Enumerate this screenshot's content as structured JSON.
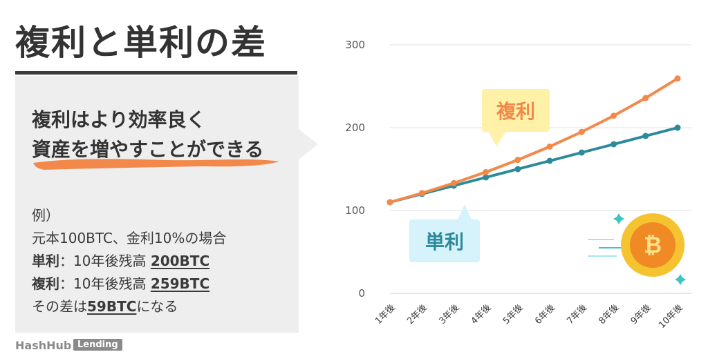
{
  "headline": "複利と単利の差",
  "lead": {
    "line1": "複利はより効率良く",
    "line2": "資産を増やすことができる"
  },
  "example": {
    "heading": "例）",
    "condition": "元本100BTC、金利10%の場合",
    "simple_prefix": "単利",
    "simple_text": "：10年後残高 ",
    "simple_value": "200BTC",
    "compound_prefix": "複利",
    "compound_text": "：10年後残高 ",
    "compound_value": "259BTC",
    "diff_prefix": "その差は",
    "diff_value": "59BTC",
    "diff_suffix": "になる"
  },
  "brand": {
    "name": "HashHub",
    "badge": "Lending"
  },
  "callouts": {
    "compound": "複利",
    "simple": "単利"
  },
  "colors": {
    "compound": "#f2894a",
    "simple": "#2c8a9a",
    "grid": "#e2e2e2",
    "coin_gold": "#f6c330",
    "coin_orange": "#f08a24",
    "sparkle": "#3cc6bf"
  },
  "icons": [
    "bitcoin-coin-icon",
    "sparkle-icon",
    "speed-lines-icon",
    "brush-underline"
  ],
  "chart_data": {
    "type": "line",
    "categories": [
      "1年後",
      "2年後",
      "3年後",
      "4年後",
      "5年後",
      "6年後",
      "7年後",
      "8年後",
      "9年後",
      "10年後"
    ],
    "series": [
      {
        "name": "複利",
        "values": [
          110,
          121,
          133.1,
          146.4,
          161.1,
          177.2,
          194.9,
          214.4,
          235.8,
          259.4
        ]
      },
      {
        "name": "単利",
        "values": [
          110,
          120,
          130,
          140,
          150,
          160,
          170,
          180,
          190,
          200
        ]
      }
    ],
    "yticks": [
      0,
      100,
      200,
      300
    ],
    "ylim": [
      0,
      300
    ],
    "grid": true,
    "title": "",
    "xlabel": "",
    "ylabel": ""
  }
}
